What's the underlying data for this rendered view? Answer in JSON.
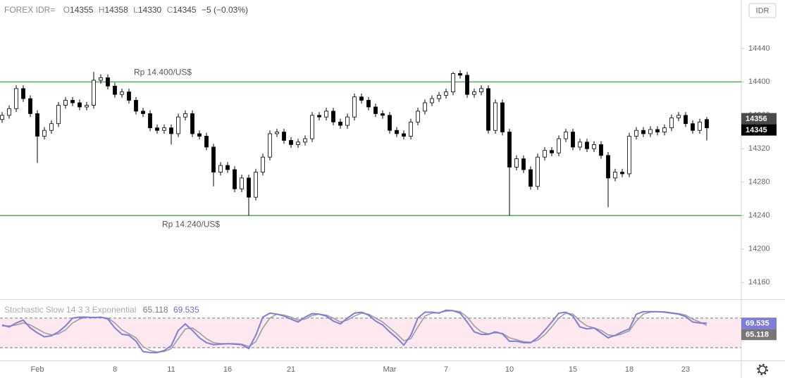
{
  "chart_data": {
    "type": "candlestick",
    "symbol": "FOREX IDR=",
    "ohlc_labels": [
      "O",
      "H",
      "L",
      "C"
    ],
    "change": "−5 (−0.03%)",
    "currency": "IDR",
    "color_up": "#ffffff",
    "color_down": "#000000",
    "price_marker": 14356,
    "categories": [
      null,
      null,
      null,
      null,
      null,
      "Feb",
      null,
      null,
      null,
      null,
      null,
      null,
      null,
      null,
      null,
      null,
      "8",
      null,
      null,
      null,
      null,
      null,
      null,
      null,
      "11",
      null,
      null,
      null,
      null,
      null,
      null,
      null,
      "16",
      null,
      null,
      null,
      null,
      null,
      null,
      null,
      null,
      "21",
      null,
      null,
      null,
      null,
      null,
      null,
      null,
      null,
      null,
      null,
      null,
      null,
      null,
      "Mar",
      null,
      null,
      null,
      null,
      null,
      null,
      null,
      "7",
      null,
      null,
      null,
      null,
      null,
      null,
      null,
      null,
      "10",
      null,
      null,
      null,
      null,
      null,
      null,
      null,
      null,
      "15",
      null,
      null,
      null,
      null,
      null,
      null,
      null,
      "18",
      null,
      null,
      null,
      null,
      null,
      null,
      null,
      "23",
      null,
      null,
      null
    ],
    "open": [
      14355,
      14360,
      14368,
      14392,
      14380,
      14362,
      14335,
      14342,
      14350,
      14372,
      14378,
      14375,
      14370,
      14372,
      14402,
      14405,
      14395,
      14385,
      14388,
      14378,
      14365,
      14362,
      14345,
      14342,
      14345,
      14338,
      14358,
      14362,
      14338,
      14335,
      14322,
      14292,
      14300,
      14295,
      14272,
      14285,
      14262,
      14292,
      14310,
      14338,
      14340,
      14330,
      14325,
      14328,
      14332,
      14360,
      14358,
      14365,
      14352,
      14348,
      14358,
      14382,
      14378,
      14370,
      14362,
      14360,
      14342,
      14338,
      14335,
      14352,
      14365,
      14375,
      14380,
      14384,
      14388,
      14410,
      14408,
      14385,
      14388,
      14392,
      14342,
      14375,
      14340,
      14298,
      14308,
      14295,
      14275,
      14310,
      14318,
      14315,
      14332,
      14340,
      14322,
      14328,
      14320,
      14325,
      14312,
      14285,
      14292,
      14290,
      14335,
      14342,
      14338,
      14343,
      14340,
      14345,
      14357,
      14360,
      14350,
      14342,
      14355
    ],
    "high": [
      14364,
      14372,
      14396,
      14396,
      14384,
      14366,
      14346,
      14354,
      14376,
      14382,
      14382,
      14379,
      14376,
      14412,
      14409,
      14409,
      14399,
      14392,
      14392,
      14382,
      14369,
      14366,
      14349,
      14349,
      14349,
      14362,
      14366,
      14366,
      14342,
      14339,
      14326,
      14304,
      14304,
      14299,
      14289,
      14289,
      14296,
      14314,
      14342,
      14344,
      14344,
      14334,
      14332,
      14336,
      14364,
      14364,
      14369,
      14369,
      14356,
      14362,
      14386,
      14386,
      14382,
      14374,
      14366,
      14364,
      14346,
      14342,
      14356,
      14369,
      14379,
      14384,
      14388,
      14392,
      14412,
      14414,
      14412,
      14392,
      14396,
      14396,
      14379,
      14379,
      14344,
      14312,
      14312,
      14299,
      14314,
      14322,
      14322,
      14336,
      14344,
      14344,
      14332,
      14332,
      14329,
      14329,
      14316,
      14296,
      14296,
      14339,
      14346,
      14346,
      14347,
      14347,
      14349,
      14361,
      14364,
      14364,
      14354,
      14356,
      14358
    ],
    "low": [
      14351,
      14356,
      14364,
      14376,
      14358,
      14303,
      14331,
      14338,
      14346,
      14368,
      14371,
      14366,
      14366,
      14368,
      14398,
      14391,
      14381,
      14381,
      14374,
      14361,
      14358,
      14341,
      14338,
      14338,
      14325,
      14334,
      14354,
      14334,
      14331,
      14318,
      14275,
      14288,
      14291,
      14268,
      14268,
      14240,
      14258,
      14288,
      14306,
      14334,
      14326,
      14321,
      14321,
      14324,
      14328,
      14354,
      14354,
      14348,
      14344,
      14344,
      14354,
      14374,
      14366,
      14358,
      14356,
      14338,
      14334,
      14331,
      14331,
      14348,
      14361,
      14371,
      14376,
      14380,
      14384,
      14404,
      14381,
      14381,
      14384,
      14338,
      14338,
      14336,
      14240,
      14294,
      14291,
      14271,
      14271,
      14306,
      14311,
      14311,
      14328,
      14318,
      14318,
      14316,
      14316,
      14308,
      14250,
      14281,
      14286,
      14286,
      14331,
      14334,
      14334,
      14336,
      14336,
      14341,
      14353,
      14346,
      14338,
      14338,
      14330
    ],
    "close": [
      14360,
      14368,
      14392,
      14380,
      14362,
      14335,
      14342,
      14350,
      14372,
      14378,
      14375,
      14370,
      14372,
      14402,
      14405,
      14395,
      14385,
      14388,
      14378,
      14365,
      14362,
      14345,
      14342,
      14345,
      14338,
      14358,
      14362,
      14338,
      14335,
      14322,
      14292,
      14300,
      14295,
      14272,
      14285,
      14262,
      14292,
      14310,
      14338,
      14340,
      14330,
      14325,
      14328,
      14332,
      14360,
      14358,
      14365,
      14352,
      14348,
      14358,
      14382,
      14378,
      14370,
      14362,
      14360,
      14342,
      14338,
      14335,
      14352,
      14365,
      14375,
      14380,
      14384,
      14388,
      14410,
      14408,
      14385,
      14388,
      14392,
      14342,
      14375,
      14340,
      14298,
      14308,
      14295,
      14275,
      14310,
      14318,
      14315,
      14332,
      14340,
      14322,
      14328,
      14320,
      14325,
      14312,
      14285,
      14292,
      14290,
      14335,
      14342,
      14338,
      14343,
      14340,
      14345,
      14357,
      14360,
      14350,
      14342,
      14352,
      14345
    ],
    "ylim": [
      14140,
      14498
    ],
    "yticks": [
      14160,
      14200,
      14240,
      14280,
      14320,
      14360,
      14400,
      14440
    ],
    "hlines": [
      {
        "value": 14400,
        "label": "Rp 14.400/US$",
        "color": "#4caf50"
      },
      {
        "value": 14240,
        "label": "Rp 14.240/US$",
        "color": "#4caf50"
      }
    ],
    "indicator": {
      "type": "line",
      "title": "Stochastic Slow 14 3 3 Exponential",
      "ylim": [
        -6,
        117
      ],
      "bands": [
        20,
        80
      ],
      "band_color": "#fce8ee",
      "series": [
        {
          "color": "#9e9e9e",
          "values": [
            64,
            64,
            66,
            70,
            66,
            58,
            50,
            46,
            48,
            56,
            70,
            78,
            82,
            81,
            82,
            80,
            70,
            56,
            48,
            40,
            22,
            14,
            11,
            12,
            18,
            38,
            58,
            60,
            50,
            38,
            30,
            28,
            28,
            28,
            27,
            22,
            32,
            60,
            80,
            88,
            86,
            82,
            76,
            78,
            85,
            88,
            86,
            80,
            72,
            76,
            84,
            90,
            88,
            80,
            72,
            60,
            48,
            34,
            38,
            62,
            84,
            90,
            91,
            94,
            95,
            93,
            82,
            64,
            52,
            48,
            50,
            49,
            40,
            36,
            32,
            31,
            35,
            46,
            62,
            80,
            90,
            88,
            74,
            64,
            60,
            55,
            46,
            44,
            48,
            54,
            74,
            88,
            92,
            93,
            93,
            91,
            89,
            86,
            78,
            72,
            65.118
          ]
        },
        {
          "color": "#7e7ed8",
          "values": [
            66,
            62,
            70,
            76,
            60,
            50,
            42,
            44,
            52,
            64,
            80,
            82,
            82,
            81,
            82,
            78,
            60,
            47,
            45,
            33,
            12,
            10,
            10,
            14,
            24,
            55,
            68,
            55,
            40,
            30,
            26,
            27,
            28,
            27,
            26,
            18,
            45,
            82,
            90,
            88,
            84,
            78,
            72,
            82,
            89,
            88,
            84,
            74,
            68,
            80,
            90,
            92,
            86,
            74,
            66,
            52,
            40,
            25,
            45,
            80,
            92,
            92,
            90,
            96,
            95,
            90,
            72,
            52,
            47,
            47,
            52,
            48,
            33,
            33,
            30,
            30,
            40,
            55,
            72,
            90,
            92,
            84,
            62,
            58,
            60,
            50,
            40,
            45,
            52,
            58,
            88,
            93,
            93,
            93,
            92,
            90,
            88,
            83,
            72,
            70,
            69.535
          ]
        }
      ]
    }
  }
}
